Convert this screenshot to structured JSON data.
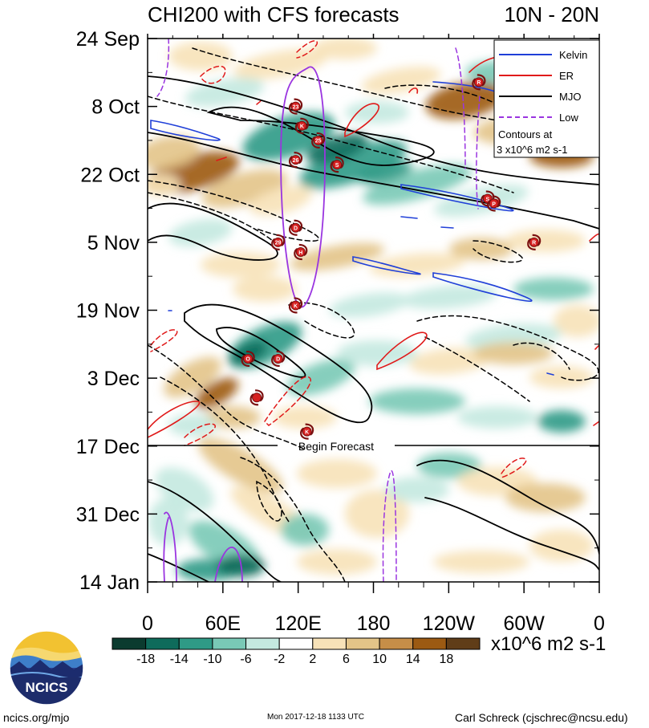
{
  "header": {
    "title": "CHI200 with CFS forecasts",
    "region": "10N - 20N"
  },
  "legend": {
    "items": [
      {
        "label": "Kelvin",
        "color": "#1f3fd8",
        "dash": false
      },
      {
        "label": "ER",
        "color": "#e01a1a",
        "dash": false
      },
      {
        "label": "MJO",
        "color": "#000000",
        "dash": false
      },
      {
        "label": "Low",
        "color": "#9a35e0",
        "dash": true
      }
    ],
    "note_line1": "Contours at",
    "note_line2": "3 x10^6 m2 s-1"
  },
  "forecast_label": "Begin Forecast",
  "colorbar": {
    "colors": [
      "#0b3b2f",
      "#0e6b5b",
      "#2f9a86",
      "#79c9b6",
      "#c4e9e0",
      "#ffffff",
      "#f7e2b8",
      "#e3c488",
      "#c68e48",
      "#9c5a12",
      "#603d18"
    ],
    "ticks": [
      "-18",
      "-14",
      "-10",
      "-6",
      "-2",
      "2",
      "6",
      "10",
      "14",
      "18"
    ],
    "unit": "x10^6 m2 s-1"
  },
  "footer": {
    "left": "ncics.org/mjo",
    "center": "Mon 2017-12-18 1133 UTC",
    "right": "Carl Schreck (cjschrec@ncsu.edu)",
    "logo_text": "NCICS"
  },
  "chart_data": {
    "type": "heatmap",
    "title": "CHI200 with CFS forecasts",
    "subtitle": "10N - 20N",
    "x_ticks": [
      "0",
      "60E",
      "120E",
      "180",
      "120W",
      "60W",
      "0"
    ],
    "x_range_deg": [
      0,
      360
    ],
    "y_ticks": [
      "24 Sep",
      "8 Oct",
      "22 Oct",
      "5 Nov",
      "19 Nov",
      "3 Dec",
      "17 Dec",
      "31 Dec",
      "14 Jan"
    ],
    "y_range": [
      "2017-09-24",
      "2018-01-14"
    ],
    "forecast_start": "2017-12-17",
    "color_levels": [
      -18,
      -14,
      -10,
      -6,
      -2,
      2,
      6,
      10,
      14,
      18
    ],
    "contour_interval": 3,
    "series": [
      {
        "name": "Kelvin",
        "color": "#1f3fd8"
      },
      {
        "name": "ER",
        "color": "#e01a1a"
      },
      {
        "name": "MJO",
        "color": "#000000"
      },
      {
        "name": "Low",
        "color": "#9a35e0"
      }
    ],
    "storms": [
      {
        "label": "23",
        "lon": 118,
        "date": "2017-10-08"
      },
      {
        "label": "K",
        "lon": 123,
        "date": "2017-10-12"
      },
      {
        "label": "25",
        "lon": 136,
        "date": "2017-10-15"
      },
      {
        "label": "26",
        "lon": 118,
        "date": "2017-10-19"
      },
      {
        "label": "S",
        "lon": 151,
        "date": "2017-10-20"
      },
      {
        "label": "R",
        "lon": 264,
        "date": "2017-10-03"
      },
      {
        "label": "S",
        "lon": 271,
        "date": "2017-10-27"
      },
      {
        "label": "P",
        "lon": 276,
        "date": "2017-10-28"
      },
      {
        "label": "D",
        "lon": 118,
        "date": "2017-11-02"
      },
      {
        "label": "29",
        "lon": 104,
        "date": "2017-11-05"
      },
      {
        "label": "H",
        "lon": 122,
        "date": "2017-11-07"
      },
      {
        "label": "R",
        "lon": 308,
        "date": "2017-11-05"
      },
      {
        "label": "K",
        "lon": 118,
        "date": "2017-11-18"
      },
      {
        "label": "O",
        "lon": 80,
        "date": "2017-11-29"
      },
      {
        "label": "D",
        "lon": 104,
        "date": "2017-11-29"
      },
      {
        "label": "",
        "lon": 87,
        "date": "2017-12-07"
      },
      {
        "label": "K",
        "lon": 127,
        "date": "2017-12-14"
      }
    ]
  }
}
